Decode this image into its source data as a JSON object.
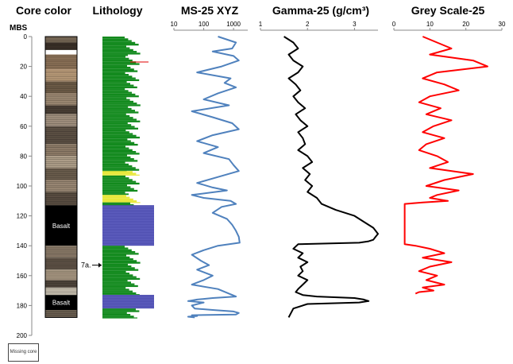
{
  "chart_data": [
    {
      "type": "strip-log",
      "title": "Core color",
      "ylabel": "MBS",
      "ylim": [
        0,
        200
      ],
      "yticks": [
        0,
        20,
        40,
        60,
        80,
        100,
        120,
        140,
        160,
        180,
        200
      ],
      "intervals": [
        {
          "top": 0,
          "base": 4,
          "color": "#7a6a58"
        },
        {
          "top": 4,
          "base": 9,
          "color": "#3a3028"
        },
        {
          "top": 9,
          "base": 12,
          "color": "#ffffff"
        },
        {
          "top": 12,
          "base": 22,
          "color": "#8c7258"
        },
        {
          "top": 22,
          "base": 30,
          "color": "#b89a78"
        },
        {
          "top": 30,
          "base": 38,
          "color": "#6e5c48"
        },
        {
          "top": 38,
          "base": 46,
          "color": "#9e8a74"
        },
        {
          "top": 46,
          "base": 52,
          "color": "#4a4036"
        },
        {
          "top": 52,
          "base": 60,
          "color": "#a39280"
        },
        {
          "top": 60,
          "base": 72,
          "color": "#5c5044"
        },
        {
          "top": 72,
          "base": 80,
          "color": "#8e7c68"
        },
        {
          "top": 80,
          "base": 88,
          "color": "#b0a08a"
        },
        {
          "top": 88,
          "base": 96,
          "color": "#6c5e4e"
        },
        {
          "top": 96,
          "base": 104,
          "color": "#9a8874"
        },
        {
          "top": 104,
          "base": 113,
          "color": "#5a4e42"
        },
        {
          "top": 113,
          "base": 140,
          "color": "#000000",
          "label": "Basalt"
        },
        {
          "top": 140,
          "base": 148,
          "color": "#8a7a68"
        },
        {
          "top": 148,
          "base": 156,
          "color": "#5e5246"
        },
        {
          "top": 156,
          "base": 163,
          "color": "#a89882"
        },
        {
          "top": 163,
          "base": 168,
          "color": "#4e443a"
        },
        {
          "top": 168,
          "base": 173,
          "color": "#c8c0b0"
        },
        {
          "top": 173,
          "base": 183,
          "color": "#000000",
          "label": "Basalt"
        },
        {
          "top": 183,
          "base": 188,
          "color": "#6a5e50"
        }
      ],
      "legend": "Missing core"
    },
    {
      "type": "strip-log",
      "title": "Lithology",
      "intervals": [
        {
          "top": 0,
          "base": 13,
          "kind": "green"
        },
        {
          "top": 13,
          "base": 90,
          "kind": "green"
        },
        {
          "top": 90,
          "base": 93,
          "kind": "yellow"
        },
        {
          "top": 93,
          "base": 106,
          "kind": "green"
        },
        {
          "top": 106,
          "base": 111,
          "kind": "yellow"
        },
        {
          "top": 111,
          "base": 113,
          "kind": "green"
        },
        {
          "top": 113,
          "base": 140,
          "kind": "basalt"
        },
        {
          "top": 140,
          "base": 173,
          "kind": "green"
        },
        {
          "top": 173,
          "base": 182,
          "kind": "basalt"
        },
        {
          "top": 182,
          "base": 188,
          "kind": "green"
        }
      ],
      "annotation": {
        "label": "7a.",
        "depth": 153
      }
    },
    {
      "type": "line",
      "title": "MS-25 XYZ",
      "xscale": "log",
      "xlim": [
        10,
        3000
      ],
      "xticks": [
        10,
        100,
        1000
      ],
      "ylim": [
        0,
        200
      ],
      "color": "#4f81bd",
      "x": [
        300,
        1200,
        900,
        200,
        1000,
        1500,
        400,
        60,
        800,
        500,
        1200,
        300,
        100,
        700,
        40,
        200,
        900,
        1500,
        200,
        60,
        300,
        100,
        700,
        1000,
        1500,
        300,
        60,
        200,
        600,
        40,
        100,
        800,
        1200,
        400,
        200,
        600,
        900,
        1200,
        1500,
        1600,
        300,
        100,
        40,
        80,
        150,
        60,
        200,
        100,
        40,
        300,
        700,
        1200,
        200,
        60,
        30,
        100,
        40,
        50,
        200,
        1000,
        1500,
        1200,
        40,
        60,
        30,
        50
      ],
      "y": [
        0,
        4,
        8,
        10,
        13,
        16,
        20,
        24,
        28,
        31,
        34,
        38,
        42,
        46,
        50,
        54,
        58,
        62,
        66,
        70,
        74,
        78,
        82,
        86,
        90,
        94,
        98,
        101,
        103,
        106,
        108,
        110,
        112,
        114,
        118,
        122,
        126,
        130,
        134,
        138,
        140,
        143,
        146,
        150,
        153,
        156,
        160,
        163,
        166,
        169,
        172,
        174,
        175,
        176,
        177,
        178,
        180,
        182,
        183,
        184,
        185,
        186,
        186.5,
        187,
        187.5,
        188
      ]
    },
    {
      "type": "line",
      "title": "Gamma-25 (g/cm³)",
      "xlim": [
        1,
        3.5
      ],
      "xticks": [
        1,
        2,
        3
      ],
      "ylim": [
        0,
        200
      ],
      "color": "#000000",
      "x": [
        1.5,
        1.7,
        1.8,
        1.6,
        1.7,
        1.9,
        1.8,
        1.6,
        1.75,
        1.85,
        1.7,
        1.8,
        1.95,
        1.75,
        1.85,
        2.0,
        1.8,
        1.9,
        1.95,
        1.8,
        2.0,
        2.1,
        1.9,
        2.05,
        1.95,
        2.1,
        2.0,
        2.2,
        2.3,
        2.6,
        3.0,
        3.2,
        3.4,
        3.5,
        3.45,
        3.4,
        3.3,
        3.1,
        1.8,
        1.7,
        1.9,
        1.8,
        2.0,
        1.85,
        1.9,
        1.8,
        2.0,
        1.9,
        1.8,
        1.75,
        1.9,
        2.2,
        3.0,
        3.2,
        3.3,
        3.1,
        2.0,
        1.7,
        1.6
      ],
      "y": [
        0,
        4,
        8,
        12,
        16,
        20,
        24,
        28,
        32,
        36,
        40,
        44,
        48,
        52,
        56,
        60,
        64,
        68,
        72,
        76,
        80,
        84,
        88,
        92,
        96,
        100,
        104,
        108,
        112,
        116,
        120,
        124,
        128,
        132,
        134,
        136,
        137,
        138,
        139,
        142,
        145,
        148,
        151,
        154,
        157,
        160,
        163,
        166,
        169,
        171,
        173,
        174,
        175,
        176,
        177,
        178,
        179,
        182,
        188
      ]
    },
    {
      "type": "line",
      "title": "Grey Scale-25",
      "xlim": [
        0,
        30
      ],
      "xticks": [
        0,
        10,
        20,
        30
      ],
      "ylim": [
        0,
        200
      ],
      "color": "#ff0000",
      "x": [
        8,
        12,
        16,
        10,
        22,
        26,
        12,
        8,
        14,
        18,
        10,
        7,
        13,
        9,
        16,
        11,
        8,
        14,
        9,
        7,
        12,
        15,
        10,
        22,
        14,
        9,
        18,
        12,
        10,
        15,
        8,
        3,
        3,
        3,
        3,
        6,
        10,
        14,
        8,
        16,
        10,
        7,
        12,
        9,
        14,
        8,
        11,
        7,
        6
      ],
      "y": [
        0,
        4,
        8,
        12,
        16,
        20,
        24,
        28,
        32,
        36,
        40,
        44,
        48,
        52,
        56,
        60,
        64,
        68,
        72,
        76,
        80,
        84,
        88,
        92,
        96,
        100,
        103,
        106,
        108,
        110,
        111,
        112,
        120,
        130,
        139,
        140,
        142,
        145,
        148,
        151,
        154,
        157,
        160,
        163,
        166,
        168,
        170,
        171,
        172
      ]
    }
  ]
}
